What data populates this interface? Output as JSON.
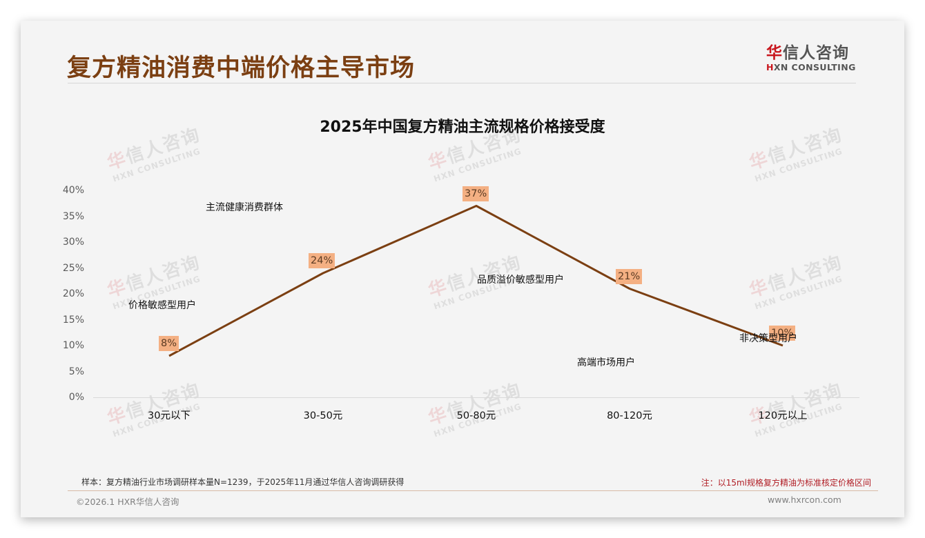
{
  "header": {
    "title": "复方精油消费中端价格主导市场",
    "logo_cn_first": "华",
    "logo_cn_rest": "信人咨询",
    "logo_en_first": "H",
    "logo_en_rest": "XN CONSULTING"
  },
  "watermark": {
    "cn_first": "华",
    "cn_rest": "信人咨询",
    "en": "HXN CONSULTING"
  },
  "chart_data": {
    "type": "line",
    "title": "2025年中国复方精油主流规格价格接受度",
    "xlabel": "",
    "ylabel": "",
    "categories": [
      "30元以下",
      "30-50元",
      "50-80元",
      "80-120元",
      "120元以上"
    ],
    "series": [
      {
        "name": "价格接受度",
        "values": [
          8,
          24,
          37,
          21,
          10
        ],
        "color": "#7b3f12"
      }
    ],
    "data_labels": [
      "8%",
      "24%",
      "37%",
      "21%",
      "10%"
    ],
    "ylim": [
      0,
      40
    ],
    "yticks": [
      "0%",
      "5%",
      "10%",
      "15%",
      "20%",
      "25%",
      "30%",
      "35%",
      "40%"
    ],
    "grid": false,
    "legend": "none",
    "annotations": [
      {
        "text": "主流健康消费群体"
      },
      {
        "text": "价格敏感型用户"
      },
      {
        "text": "品质溢价敏感型用户"
      },
      {
        "text": "高端市场用户"
      },
      {
        "text": "非决策型用户"
      }
    ],
    "colors": {
      "line": "#7b3f12",
      "label_bg": "#f4b083"
    }
  },
  "footer": {
    "source": "样本：复方精油行业市场调研样本量N=1239，于2025年11月通过华信人咨询调研获得",
    "note": "注：以15ml规格复方精油为标准核定价格区间",
    "copyright": "©2026.1 HXR华信人咨询",
    "website": "www.hxrcon.com"
  }
}
